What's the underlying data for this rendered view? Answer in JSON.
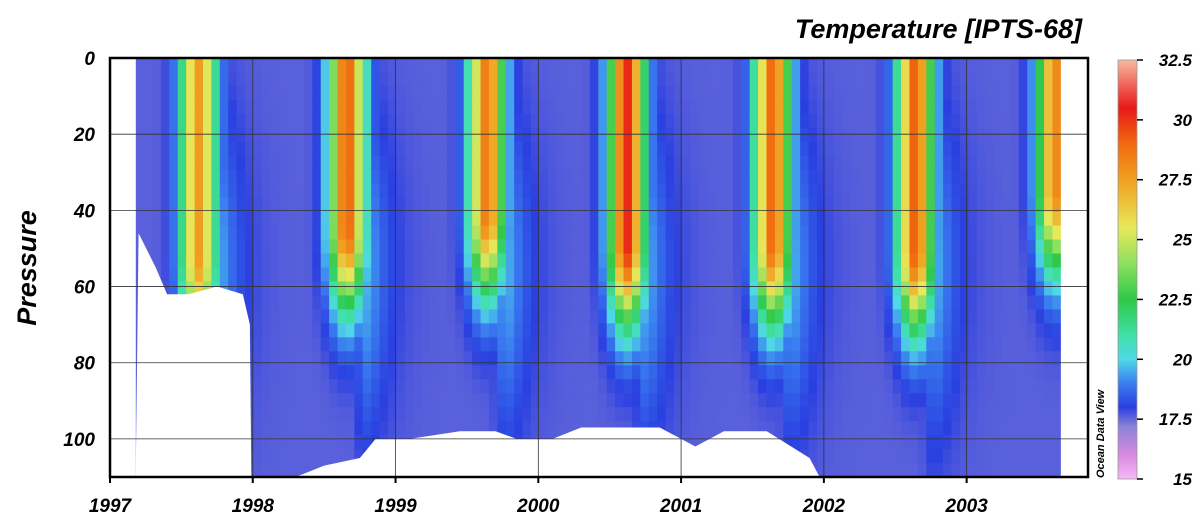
{
  "chart_data": {
    "type": "heatmap",
    "title": "Temperature [IPTS-68]",
    "ylabel": "Pressure",
    "xlabel": "",
    "watermark": "Ocean Data View",
    "x_ticks": [
      "1997",
      "1998",
      "1999",
      "2000",
      "2001",
      "2002",
      "2003"
    ],
    "x_range": [
      1997.0,
      2003.85
    ],
    "y_ticks": [
      "0",
      "20",
      "40",
      "60",
      "80",
      "100"
    ],
    "y_range": [
      0,
      110
    ],
    "y_inverted": true,
    "grid": true,
    "colorbar": {
      "min": 15,
      "max": 32.5,
      "ticks": [
        "32.5",
        "30",
        "27.5",
        "25",
        "22.5",
        "20",
        "17.5",
        "15"
      ],
      "stops": [
        {
          "v": 15.0,
          "c": "#f7b8f5"
        },
        {
          "v": 16.0,
          "c": "#d78ae0"
        },
        {
          "v": 17.2,
          "c": "#8a82d6"
        },
        {
          "v": 18.0,
          "c": "#2a3fe0"
        },
        {
          "v": 19.0,
          "c": "#3a7ef0"
        },
        {
          "v": 20.0,
          "c": "#50d8e8"
        },
        {
          "v": 21.0,
          "c": "#40e0a8"
        },
        {
          "v": 22.5,
          "c": "#2ec848"
        },
        {
          "v": 24.0,
          "c": "#8ee060"
        },
        {
          "v": 25.5,
          "c": "#e8e85a"
        },
        {
          "v": 27.5,
          "c": "#f0a020"
        },
        {
          "v": 29.0,
          "c": "#f06a10"
        },
        {
          "v": 30.5,
          "c": "#e81818"
        },
        {
          "v": 32.5,
          "c": "#f8b8a0"
        }
      ]
    },
    "summer_peaks": [
      {
        "time": 1997.62,
        "temp": 27.6,
        "depth": 52
      },
      {
        "time": 1998.66,
        "temp": 29.2,
        "depth": 44
      },
      {
        "time": 1999.64,
        "temp": 28.6,
        "depth": 40
      },
      {
        "time": 2000.62,
        "temp": 30.2,
        "depth": 48
      },
      {
        "time": 2001.64,
        "temp": 29.0,
        "depth": 48
      },
      {
        "time": 2002.64,
        "temp": 29.2,
        "depth": 50
      },
      {
        "time": 2003.62,
        "temp": 28.2,
        "depth": 34
      }
    ],
    "winter_temp": 16.6,
    "deep_temp": 17.6,
    "bottom_profile": [
      [
        1997.2,
        46
      ],
      [
        1997.32,
        55
      ],
      [
        1997.4,
        62
      ],
      [
        1997.55,
        62
      ],
      [
        1997.75,
        60
      ],
      [
        1997.93,
        62
      ],
      [
        1997.98,
        70
      ],
      [
        1997.99,
        110
      ],
      [
        1998.3,
        110
      ],
      [
        1998.5,
        107
      ],
      [
        1998.75,
        105
      ],
      [
        1998.86,
        100
      ],
      [
        1999.1,
        100
      ],
      [
        1999.45,
        98
      ],
      [
        1999.7,
        98
      ],
      [
        1999.85,
        100
      ],
      [
        2000.1,
        100
      ],
      [
        2000.3,
        97
      ],
      [
        2000.85,
        97
      ],
      [
        2001.0,
        100
      ],
      [
        2001.1,
        102
      ],
      [
        2001.3,
        98
      ],
      [
        2001.6,
        98
      ],
      [
        2001.9,
        105
      ],
      [
        2001.97,
        110
      ],
      [
        2003.85,
        110
      ]
    ],
    "data_start": 1997.18,
    "data_end": 2003.66
  }
}
